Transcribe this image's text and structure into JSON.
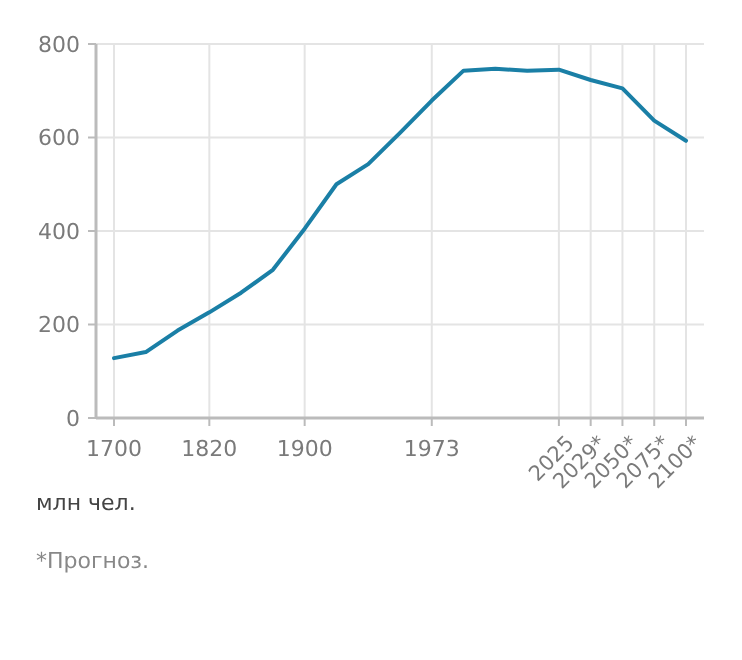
{
  "chart_data": {
    "type": "line",
    "categories": [
      "1700",
      null,
      null,
      "1820",
      null,
      null,
      "1900",
      null,
      null,
      null,
      "1973",
      null,
      null,
      null,
      "2025",
      "2029*",
      "2050*",
      "2075*",
      "2100*"
    ],
    "series": [
      {
        "color": "#1a7fa6",
        "values": [
          128,
          141,
          187,
          226,
          268,
          317,
          405,
          500,
          543,
          610,
          679,
          743,
          747,
          743,
          745,
          723,
          705,
          636,
          593
        ]
      }
    ],
    "ylim": [
      0,
      800
    ],
    "yticks": [
      0,
      200,
      400,
      600,
      800
    ],
    "grid": true,
    "ylabel": "млн чел.",
    "annotations": [
      "*Прогноз."
    ]
  }
}
